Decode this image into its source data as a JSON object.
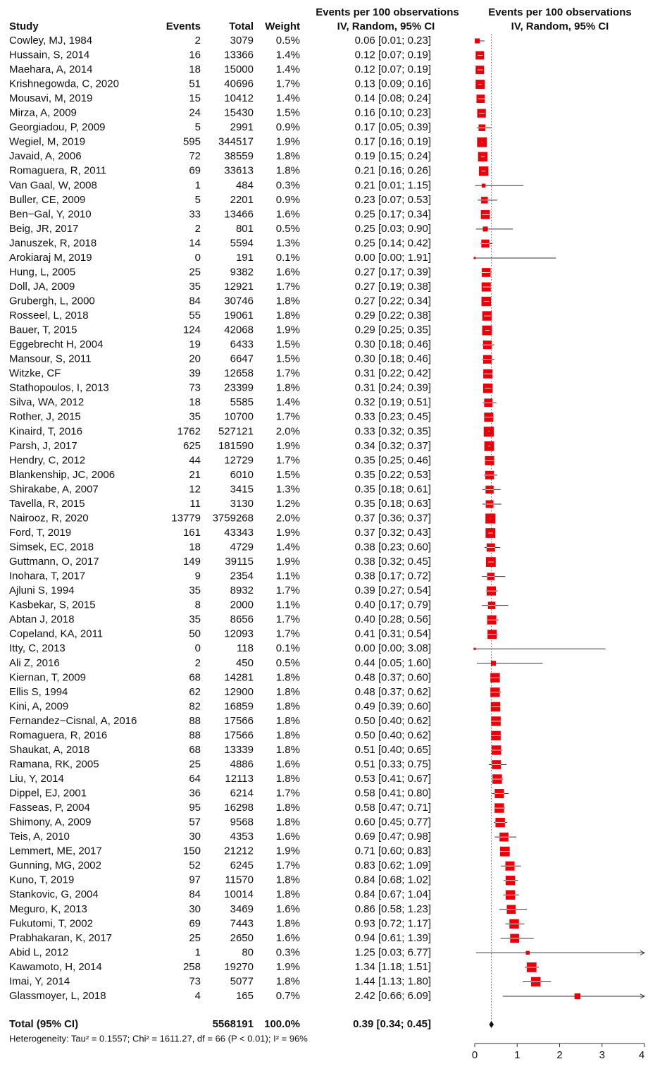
{
  "chart_data": {
    "type": "forest",
    "header": {
      "study": "Study",
      "events": "Events",
      "total": "Total",
      "weight": "Weight",
      "ci_title": "Events per 100 observations",
      "ci_subtitle": "IV, Random, 95% CI",
      "plot_title": "Events per 100 observations",
      "plot_subtitle": "IV, Random, 95% CI"
    },
    "rows": [
      {
        "study": "Cowley, MJ, 1984",
        "events": 2,
        "total": 3079,
        "weight": 0.5,
        "weight_label": "0.5%",
        "estimate": 0.06,
        "lower": 0.01,
        "upper": 0.23,
        "ci_label": "0.06 [0.01; 0.23]"
      },
      {
        "study": "Hussain, S, 2014",
        "events": 16,
        "total": 13366,
        "weight": 1.4,
        "weight_label": "1.4%",
        "estimate": 0.12,
        "lower": 0.07,
        "upper": 0.19,
        "ci_label": "0.12 [0.07; 0.19]"
      },
      {
        "study": "Maehara, A, 2014",
        "events": 18,
        "total": 15000,
        "weight": 1.4,
        "weight_label": "1.4%",
        "estimate": 0.12,
        "lower": 0.07,
        "upper": 0.19,
        "ci_label": "0.12 [0.07; 0.19]"
      },
      {
        "study": "Krishnegowda, C, 2020",
        "events": 51,
        "total": 40696,
        "weight": 1.7,
        "weight_label": "1.7%",
        "estimate": 0.13,
        "lower": 0.09,
        "upper": 0.16,
        "ci_label": "0.13 [0.09; 0.16]"
      },
      {
        "study": "Mousavi, M, 2019",
        "events": 15,
        "total": 10412,
        "weight": 1.4,
        "weight_label": "1.4%",
        "estimate": 0.14,
        "lower": 0.08,
        "upper": 0.24,
        "ci_label": "0.14 [0.08; 0.24]"
      },
      {
        "study": "Mirza, A, 2009",
        "events": 24,
        "total": 15430,
        "weight": 1.5,
        "weight_label": "1.5%",
        "estimate": 0.16,
        "lower": 0.1,
        "upper": 0.23,
        "ci_label": "0.16 [0.10; 0.23]"
      },
      {
        "study": "Georgiadou, P, 2009",
        "events": 5,
        "total": 2991,
        "weight": 0.9,
        "weight_label": "0.9%",
        "estimate": 0.17,
        "lower": 0.05,
        "upper": 0.39,
        "ci_label": "0.17 [0.05; 0.39]"
      },
      {
        "study": "Wegiel, M, 2019",
        "events": 595,
        "total": 344517,
        "weight": 1.9,
        "weight_label": "1.9%",
        "estimate": 0.17,
        "lower": 0.16,
        "upper": 0.19,
        "ci_label": "0.17 [0.16; 0.19]"
      },
      {
        "study": "Javaid, A, 2006",
        "events": 72,
        "total": 38559,
        "weight": 1.8,
        "weight_label": "1.8%",
        "estimate": 0.19,
        "lower": 0.15,
        "upper": 0.24,
        "ci_label": "0.19 [0.15; 0.24]"
      },
      {
        "study": "Romaguera, R, 2011",
        "events": 69,
        "total": 33613,
        "weight": 1.8,
        "weight_label": "1.8%",
        "estimate": 0.21,
        "lower": 0.16,
        "upper": 0.26,
        "ci_label": "0.21 [0.16; 0.26]"
      },
      {
        "study": "Van Gaal, W, 2008",
        "events": 1,
        "total": 484,
        "weight": 0.3,
        "weight_label": "0.3%",
        "estimate": 0.21,
        "lower": 0.01,
        "upper": 1.15,
        "ci_label": "0.21 [0.01; 1.15]"
      },
      {
        "study": "Buller, CE, 2009",
        "events": 5,
        "total": 2201,
        "weight": 0.9,
        "weight_label": "0.9%",
        "estimate": 0.23,
        "lower": 0.07,
        "upper": 0.53,
        "ci_label": "0.23 [0.07; 0.53]"
      },
      {
        "study": "Ben−Gal, Y, 2010",
        "events": 33,
        "total": 13466,
        "weight": 1.6,
        "weight_label": "1.6%",
        "estimate": 0.25,
        "lower": 0.17,
        "upper": 0.34,
        "ci_label": "0.25 [0.17; 0.34]"
      },
      {
        "study": "Beig, JR, 2017",
        "events": 2,
        "total": 801,
        "weight": 0.5,
        "weight_label": "0.5%",
        "estimate": 0.25,
        "lower": 0.03,
        "upper": 0.9,
        "ci_label": "0.25 [0.03; 0.90]"
      },
      {
        "study": "Januszek, R, 2018",
        "events": 14,
        "total": 5594,
        "weight": 1.3,
        "weight_label": "1.3%",
        "estimate": 0.25,
        "lower": 0.14,
        "upper": 0.42,
        "ci_label": "0.25 [0.14; 0.42]"
      },
      {
        "study": "Arokiaraj M, 2019",
        "events": 0,
        "total": 191,
        "weight": 0.1,
        "weight_label": "0.1%",
        "estimate": 0.0,
        "lower": 0.0,
        "upper": 1.91,
        "ci_label": "0.00 [0.00; 1.91]"
      },
      {
        "study": "Hung, L, 2005",
        "events": 25,
        "total": 9382,
        "weight": 1.6,
        "weight_label": "1.6%",
        "estimate": 0.27,
        "lower": 0.17,
        "upper": 0.39,
        "ci_label": "0.27 [0.17; 0.39]"
      },
      {
        "study": "Doll, JA, 2009",
        "events": 35,
        "total": 12921,
        "weight": 1.7,
        "weight_label": "1.7%",
        "estimate": 0.27,
        "lower": 0.19,
        "upper": 0.38,
        "ci_label": "0.27 [0.19; 0.38]"
      },
      {
        "study": "Grubergh, L, 2000",
        "events": 84,
        "total": 30746,
        "weight": 1.8,
        "weight_label": "1.8%",
        "estimate": 0.27,
        "lower": 0.22,
        "upper": 0.34,
        "ci_label": "0.27 [0.22; 0.34]"
      },
      {
        "study": "Rosseel, L, 2018",
        "events": 55,
        "total": 19061,
        "weight": 1.8,
        "weight_label": "1.8%",
        "estimate": 0.29,
        "lower": 0.22,
        "upper": 0.38,
        "ci_label": "0.29 [0.22; 0.38]"
      },
      {
        "study": "Bauer, T, 2015",
        "events": 124,
        "total": 42068,
        "weight": 1.9,
        "weight_label": "1.9%",
        "estimate": 0.29,
        "lower": 0.25,
        "upper": 0.35,
        "ci_label": "0.29 [0.25; 0.35]"
      },
      {
        "study": "Eggebrecht H, 2004",
        "events": 19,
        "total": 6433,
        "weight": 1.5,
        "weight_label": "1.5%",
        "estimate": 0.3,
        "lower": 0.18,
        "upper": 0.46,
        "ci_label": "0.30 [0.18; 0.46]"
      },
      {
        "study": "Mansour, S, 2011",
        "events": 20,
        "total": 6647,
        "weight": 1.5,
        "weight_label": "1.5%",
        "estimate": 0.3,
        "lower": 0.18,
        "upper": 0.46,
        "ci_label": "0.30 [0.18; 0.46]"
      },
      {
        "study": "Witzke, CF",
        "events": 39,
        "total": 12658,
        "weight": 1.7,
        "weight_label": "1.7%",
        "estimate": 0.31,
        "lower": 0.22,
        "upper": 0.42,
        "ci_label": "0.31 [0.22; 0.42]"
      },
      {
        "study": "Stathopoulos, I, 2013",
        "events": 73,
        "total": 23399,
        "weight": 1.8,
        "weight_label": "1.8%",
        "estimate": 0.31,
        "lower": 0.24,
        "upper": 0.39,
        "ci_label": "0.31 [0.24; 0.39]"
      },
      {
        "study": "Silva, WA, 2012",
        "events": 18,
        "total": 5585,
        "weight": 1.4,
        "weight_label": "1.4%",
        "estimate": 0.32,
        "lower": 0.19,
        "upper": 0.51,
        "ci_label": "0.32 [0.19; 0.51]"
      },
      {
        "study": "Rother, J, 2015",
        "events": 35,
        "total": 10700,
        "weight": 1.7,
        "weight_label": "1.7%",
        "estimate": 0.33,
        "lower": 0.23,
        "upper": 0.45,
        "ci_label": "0.33 [0.23; 0.45]"
      },
      {
        "study": "Kinaird, T, 2016",
        "events": 1762,
        "total": 527121,
        "weight": 2.0,
        "weight_label": "2.0%",
        "estimate": 0.33,
        "lower": 0.32,
        "upper": 0.35,
        "ci_label": "0.33 [0.32; 0.35]"
      },
      {
        "study": "Parsh, J, 2017",
        "events": 625,
        "total": 181590,
        "weight": 1.9,
        "weight_label": "1.9%",
        "estimate": 0.34,
        "lower": 0.32,
        "upper": 0.37,
        "ci_label": "0.34 [0.32; 0.37]"
      },
      {
        "study": "Hendry, C, 2012",
        "events": 44,
        "total": 12729,
        "weight": 1.7,
        "weight_label": "1.7%",
        "estimate": 0.35,
        "lower": 0.25,
        "upper": 0.46,
        "ci_label": "0.35 [0.25; 0.46]"
      },
      {
        "study": "Blankenship, JC, 2006",
        "events": 21,
        "total": 6010,
        "weight": 1.5,
        "weight_label": "1.5%",
        "estimate": 0.35,
        "lower": 0.22,
        "upper": 0.53,
        "ci_label": "0.35 [0.22; 0.53]"
      },
      {
        "study": "Shirakabe, A, 2007",
        "events": 12,
        "total": 3415,
        "weight": 1.3,
        "weight_label": "1.3%",
        "estimate": 0.35,
        "lower": 0.18,
        "upper": 0.61,
        "ci_label": "0.35 [0.18; 0.61]"
      },
      {
        "study": "Tavella, R, 2015",
        "events": 11,
        "total": 3130,
        "weight": 1.2,
        "weight_label": "1.2%",
        "estimate": 0.35,
        "lower": 0.18,
        "upper": 0.63,
        "ci_label": "0.35 [0.18; 0.63]"
      },
      {
        "study": "Nairooz, R, 2020",
        "events": 13779,
        "total": 3759268,
        "weight": 2.0,
        "weight_label": "2.0%",
        "estimate": 0.37,
        "lower": 0.36,
        "upper": 0.37,
        "ci_label": "0.37 [0.36; 0.37]"
      },
      {
        "study": "Ford, T, 2019",
        "events": 161,
        "total": 43343,
        "weight": 1.9,
        "weight_label": "1.9%",
        "estimate": 0.37,
        "lower": 0.32,
        "upper": 0.43,
        "ci_label": "0.37 [0.32; 0.43]"
      },
      {
        "study": "Simsek, EC, 2018",
        "events": 18,
        "total": 4729,
        "weight": 1.4,
        "weight_label": "1.4%",
        "estimate": 0.38,
        "lower": 0.23,
        "upper": 0.6,
        "ci_label": "0.38 [0.23; 0.60]"
      },
      {
        "study": "Guttmann, O, 2017",
        "events": 149,
        "total": 39115,
        "weight": 1.9,
        "weight_label": "1.9%",
        "estimate": 0.38,
        "lower": 0.32,
        "upper": 0.45,
        "ci_label": "0.38 [0.32; 0.45]"
      },
      {
        "study": "Inohara, T, 2017",
        "events": 9,
        "total": 2354,
        "weight": 1.1,
        "weight_label": "1.1%",
        "estimate": 0.38,
        "lower": 0.17,
        "upper": 0.72,
        "ci_label": "0.38 [0.17; 0.72]"
      },
      {
        "study": "Ajluni S, 1994",
        "events": 35,
        "total": 8932,
        "weight": 1.7,
        "weight_label": "1.7%",
        "estimate": 0.39,
        "lower": 0.27,
        "upper": 0.54,
        "ci_label": "0.39 [0.27; 0.54]"
      },
      {
        "study": "Kasbekar, S, 2015",
        "events": 8,
        "total": 2000,
        "weight": 1.1,
        "weight_label": "1.1%",
        "estimate": 0.4,
        "lower": 0.17,
        "upper": 0.79,
        "ci_label": "0.40 [0.17; 0.79]"
      },
      {
        "study": "Abtan J, 2018",
        "events": 35,
        "total": 8656,
        "weight": 1.7,
        "weight_label": "1.7%",
        "estimate": 0.4,
        "lower": 0.28,
        "upper": 0.56,
        "ci_label": "0.40 [0.28; 0.56]"
      },
      {
        "study": "Copeland, KA, 2011",
        "events": 50,
        "total": 12093,
        "weight": 1.7,
        "weight_label": "1.7%",
        "estimate": 0.41,
        "lower": 0.31,
        "upper": 0.54,
        "ci_label": "0.41 [0.31; 0.54]"
      },
      {
        "study": "Itty, C, 2013",
        "events": 0,
        "total": 118,
        "weight": 0.1,
        "weight_label": "0.1%",
        "estimate": 0.0,
        "lower": 0.0,
        "upper": 3.08,
        "ci_label": "0.00 [0.00; 3.08]"
      },
      {
        "study": "Ali Z, 2016",
        "events": 2,
        "total": 450,
        "weight": 0.5,
        "weight_label": "0.5%",
        "estimate": 0.44,
        "lower": 0.05,
        "upper": 1.6,
        "ci_label": "0.44 [0.05; 1.60]"
      },
      {
        "study": "Kiernan, T, 2009",
        "events": 68,
        "total": 14281,
        "weight": 1.8,
        "weight_label": "1.8%",
        "estimate": 0.48,
        "lower": 0.37,
        "upper": 0.6,
        "ci_label": "0.48 [0.37; 0.60]"
      },
      {
        "study": "Ellis S, 1994",
        "events": 62,
        "total": 12900,
        "weight": 1.8,
        "weight_label": "1.8%",
        "estimate": 0.48,
        "lower": 0.37,
        "upper": 0.62,
        "ci_label": "0.48 [0.37; 0.62]"
      },
      {
        "study": "Kini, A, 2009",
        "events": 82,
        "total": 16859,
        "weight": 1.8,
        "weight_label": "1.8%",
        "estimate": 0.49,
        "lower": 0.39,
        "upper": 0.6,
        "ci_label": "0.49 [0.39; 0.60]"
      },
      {
        "study": "Fernandez−Cisnal, A, 2016",
        "events": 88,
        "total": 17566,
        "weight": 1.8,
        "weight_label": "1.8%",
        "estimate": 0.5,
        "lower": 0.4,
        "upper": 0.62,
        "ci_label": "0.50 [0.40; 0.62]"
      },
      {
        "study": "Romaguera, R, 2016",
        "events": 88,
        "total": 17566,
        "weight": 1.8,
        "weight_label": "1.8%",
        "estimate": 0.5,
        "lower": 0.4,
        "upper": 0.62,
        "ci_label": "0.50 [0.40; 0.62]"
      },
      {
        "study": "Shaukat, A, 2018",
        "events": 68,
        "total": 13339,
        "weight": 1.8,
        "weight_label": "1.8%",
        "estimate": 0.51,
        "lower": 0.4,
        "upper": 0.65,
        "ci_label": "0.51 [0.40; 0.65]"
      },
      {
        "study": "Ramana, RK, 2005",
        "events": 25,
        "total": 4886,
        "weight": 1.6,
        "weight_label": "1.6%",
        "estimate": 0.51,
        "lower": 0.33,
        "upper": 0.75,
        "ci_label": "0.51 [0.33; 0.75]"
      },
      {
        "study": "Liu, Y, 2014",
        "events": 64,
        "total": 12113,
        "weight": 1.8,
        "weight_label": "1.8%",
        "estimate": 0.53,
        "lower": 0.41,
        "upper": 0.67,
        "ci_label": "0.53 [0.41; 0.67]"
      },
      {
        "study": "Dippel, EJ, 2001",
        "events": 36,
        "total": 6214,
        "weight": 1.7,
        "weight_label": "1.7%",
        "estimate": 0.58,
        "lower": 0.41,
        "upper": 0.8,
        "ci_label": "0.58 [0.41; 0.80]"
      },
      {
        "study": "Fasseas, P, 2004",
        "events": 95,
        "total": 16298,
        "weight": 1.8,
        "weight_label": "1.8%",
        "estimate": 0.58,
        "lower": 0.47,
        "upper": 0.71,
        "ci_label": "0.58 [0.47; 0.71]"
      },
      {
        "study": "Shimony, A, 2009",
        "events": 57,
        "total": 9568,
        "weight": 1.8,
        "weight_label": "1.8%",
        "estimate": 0.6,
        "lower": 0.45,
        "upper": 0.77,
        "ci_label": "0.60 [0.45; 0.77]"
      },
      {
        "study": "Teis, A, 2010",
        "events": 30,
        "total": 4353,
        "weight": 1.6,
        "weight_label": "1.6%",
        "estimate": 0.69,
        "lower": 0.47,
        "upper": 0.98,
        "ci_label": "0.69 [0.47; 0.98]"
      },
      {
        "study": "Lemmert, ME, 2017",
        "events": 150,
        "total": 21212,
        "weight": 1.9,
        "weight_label": "1.9%",
        "estimate": 0.71,
        "lower": 0.6,
        "upper": 0.83,
        "ci_label": "0.71 [0.60; 0.83]"
      },
      {
        "study": "Gunning, MG, 2002",
        "events": 52,
        "total": 6245,
        "weight": 1.7,
        "weight_label": "1.7%",
        "estimate": 0.83,
        "lower": 0.62,
        "upper": 1.09,
        "ci_label": "0.83 [0.62; 1.09]"
      },
      {
        "study": "Kuno, T, 2019",
        "events": 97,
        "total": 11570,
        "weight": 1.8,
        "weight_label": "1.8%",
        "estimate": 0.84,
        "lower": 0.68,
        "upper": 1.02,
        "ci_label": "0.84 [0.68; 1.02]"
      },
      {
        "study": "Stankovic, G, 2004",
        "events": 84,
        "total": 10014,
        "weight": 1.8,
        "weight_label": "1.8%",
        "estimate": 0.84,
        "lower": 0.67,
        "upper": 1.04,
        "ci_label": "0.84 [0.67; 1.04]"
      },
      {
        "study": "Meguro, K, 2013",
        "events": 30,
        "total": 3469,
        "weight": 1.6,
        "weight_label": "1.6%",
        "estimate": 0.86,
        "lower": 0.58,
        "upper": 1.23,
        "ci_label": "0.86 [0.58; 1.23]"
      },
      {
        "study": "Fukutomi, T, 2002",
        "events": 69,
        "total": 7443,
        "weight": 1.8,
        "weight_label": "1.8%",
        "estimate": 0.93,
        "lower": 0.72,
        "upper": 1.17,
        "ci_label": "0.93 [0.72; 1.17]"
      },
      {
        "study": "Prabhakaran, K, 2017",
        "events": 25,
        "total": 2650,
        "weight": 1.6,
        "weight_label": "1.6%",
        "estimate": 0.94,
        "lower": 0.61,
        "upper": 1.39,
        "ci_label": "0.94 [0.61; 1.39]"
      },
      {
        "study": "Abid L, 2012",
        "events": 1,
        "total": 80,
        "weight": 0.3,
        "weight_label": "0.3%",
        "estimate": 1.25,
        "lower": 0.03,
        "upper": 6.77,
        "ci_label": "1.25 [0.03; 6.77]"
      },
      {
        "study": "Kawamoto, H, 2014",
        "events": 258,
        "total": 19270,
        "weight": 1.9,
        "weight_label": "1.9%",
        "estimate": 1.34,
        "lower": 1.18,
        "upper": 1.51,
        "ci_label": "1.34 [1.18; 1.51]"
      },
      {
        "study": "Imai, Y, 2014",
        "events": 73,
        "total": 5077,
        "weight": 1.8,
        "weight_label": "1.8%",
        "estimate": 1.44,
        "lower": 1.13,
        "upper": 1.8,
        "ci_label": "1.44 [1.13; 1.80]"
      },
      {
        "study": "Glassmoyer, L, 2018",
        "events": 4,
        "total": 165,
        "weight": 0.7,
        "weight_label": "0.7%",
        "estimate": 2.42,
        "lower": 0.66,
        "upper": 6.09,
        "ci_label": "2.42 [0.66; 6.09]"
      }
    ],
    "summary": {
      "study": "Total (95% CI)",
      "total": 5568191,
      "weight_label": "100.0%",
      "estimate": 0.39,
      "lower": 0.34,
      "upper": 0.45,
      "ci_label": "0.39 [0.34; 0.45]"
    },
    "heterogeneity": "Heterogeneity: Tau² = 0.1557; Chi² = 1611.27, df = 66 (P < 0.01); I² = 96%",
    "box_color": "#e8000b",
    "xlim": [
      0,
      4
    ],
    "xticks": [
      0,
      1,
      2,
      3,
      4
    ]
  }
}
